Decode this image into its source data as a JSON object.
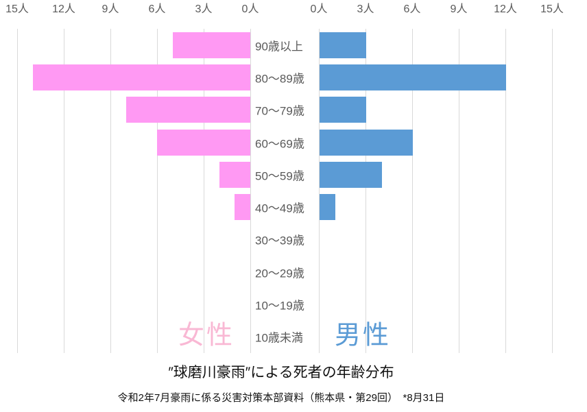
{
  "chart_data": {
    "type": "bar",
    "variant": "population-pyramid",
    "title": "″球磨川豪雨″による死者の年齢分布",
    "subtitle": "令和2年7月豪雨に係る災害対策本部資料（熊本県・第29回）　*8月31日",
    "unit": "人",
    "categories": [
      "90歳以上",
      "80～89歳",
      "70～79歳",
      "60～69歳",
      "50～59歳",
      "40～49歳",
      "30～39歳",
      "20～29歳",
      "10～19歳",
      "10歳未満"
    ],
    "series": [
      {
        "name": "女性",
        "side": "left",
        "color": "#FF99F3",
        "legend_color": "#F9B8D4",
        "values": [
          5,
          14,
          8,
          6,
          2,
          1,
          0,
          0,
          0,
          0
        ]
      },
      {
        "name": "男性",
        "side": "right",
        "color": "#5B9BD5",
        "legend_color": "#5B9BD5",
        "values": [
          3,
          12,
          3,
          6,
          4,
          1,
          0,
          0,
          0,
          0
        ]
      }
    ],
    "axis": {
      "ticks": [
        0,
        3,
        6,
        9,
        12,
        15
      ],
      "max": 15,
      "left_labels": [
        "15人",
        "12人",
        "9人",
        "6人",
        "3人",
        "0人"
      ],
      "right_labels": [
        "0人",
        "3人",
        "6人",
        "9人",
        "12人",
        "15人"
      ]
    },
    "grid": "on",
    "legend_position": "inside-bottom",
    "grid_color": "#D9D9D9",
    "text_color": "#595959"
  }
}
